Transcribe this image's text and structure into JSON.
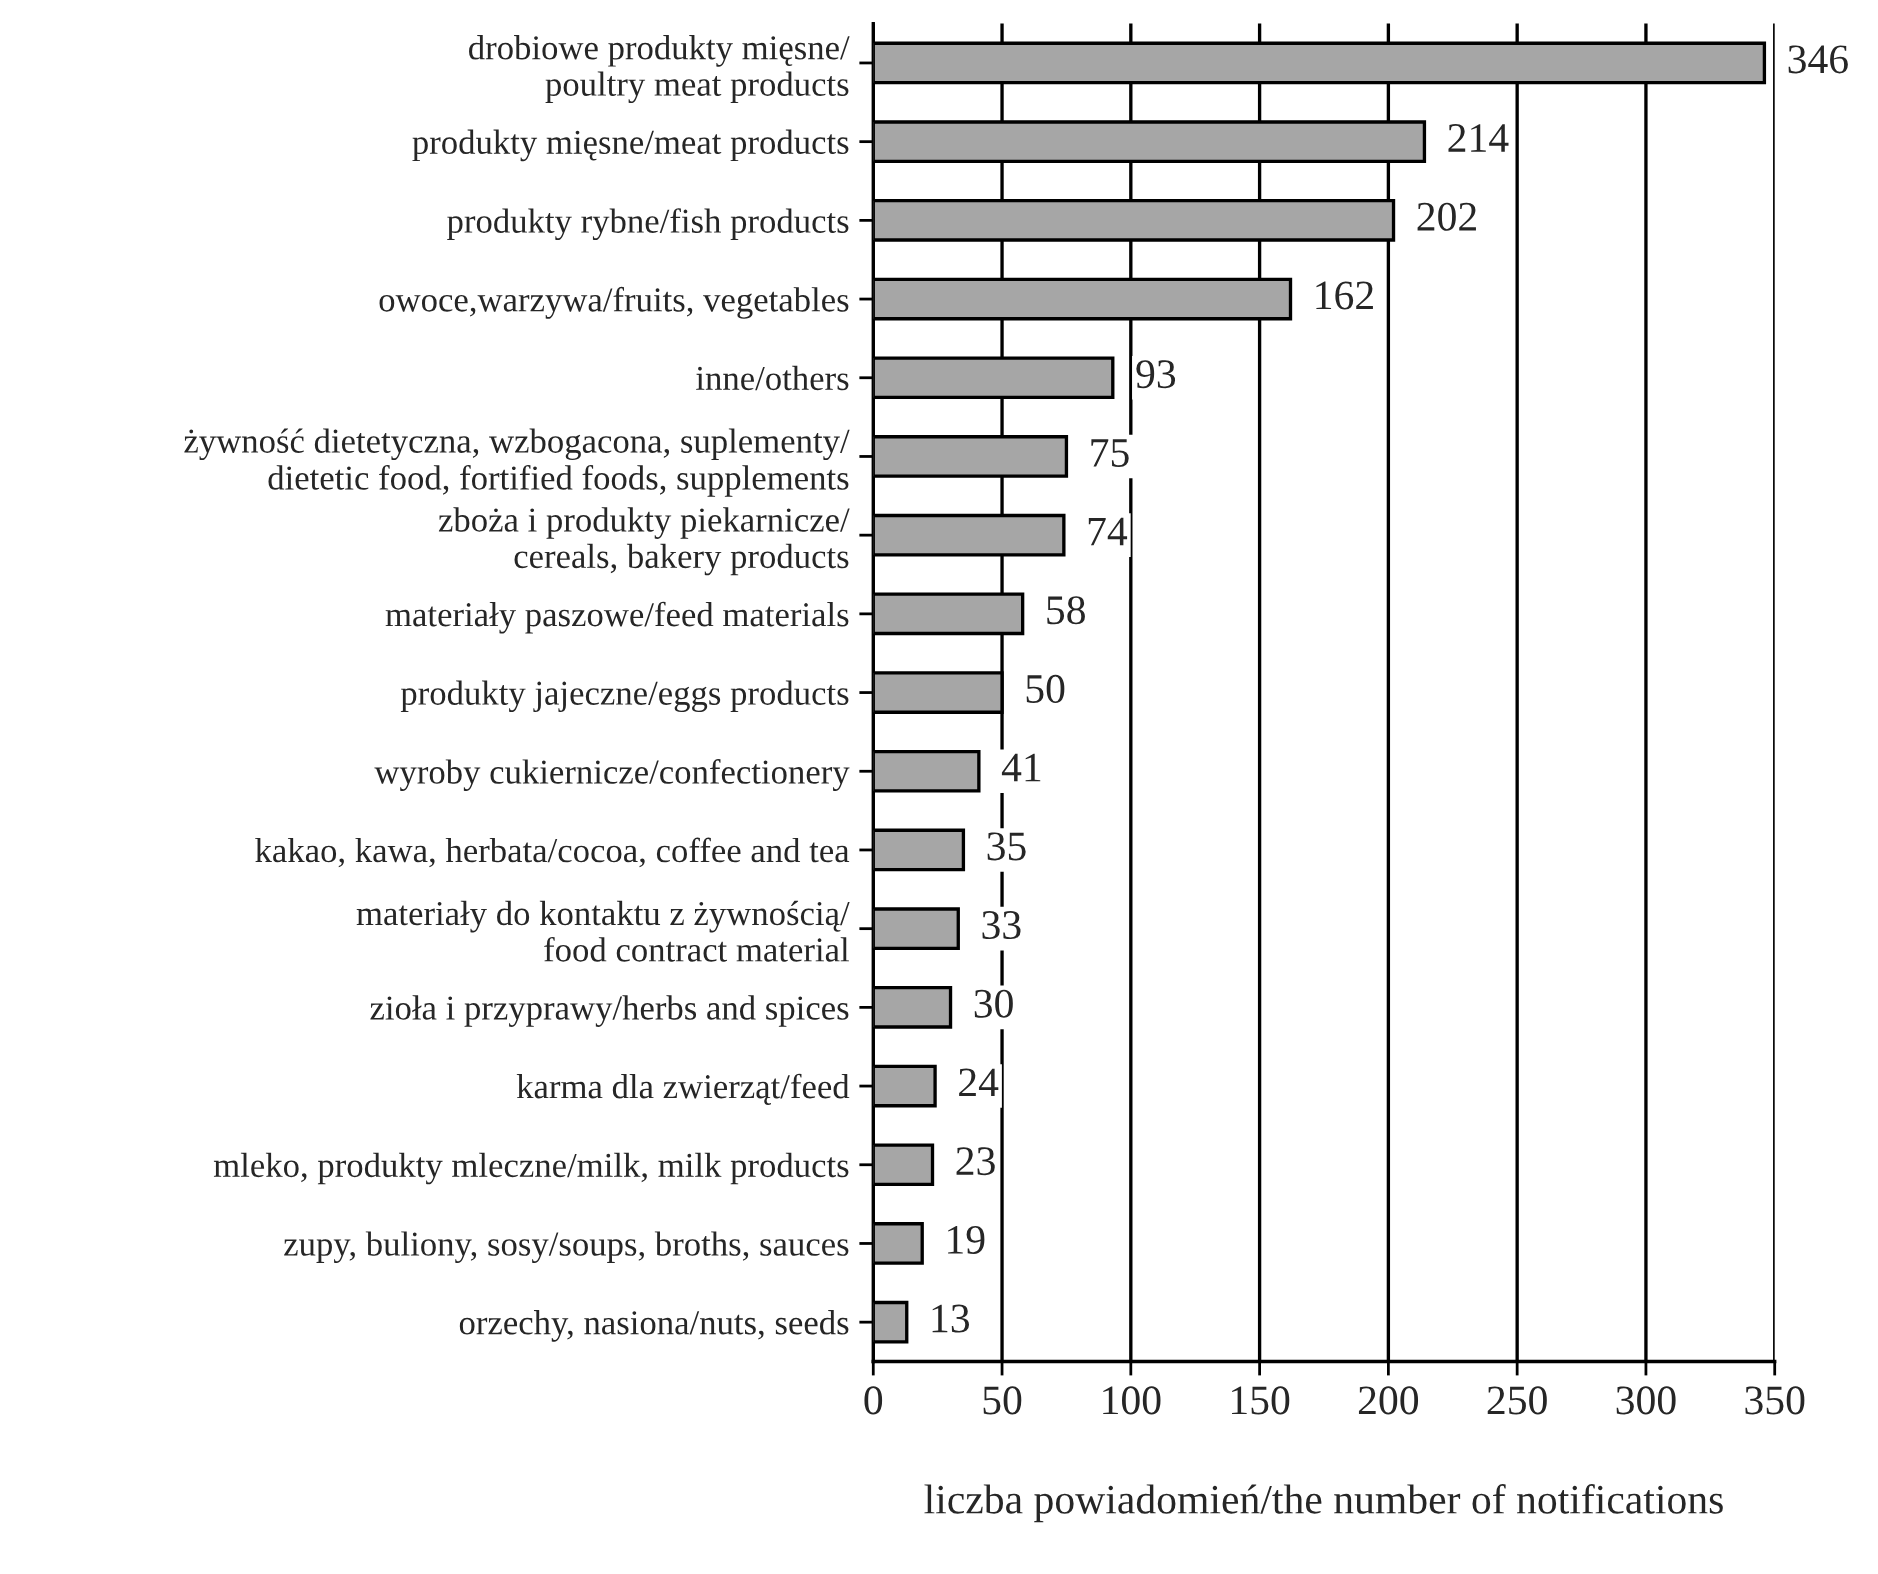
{
  "chart_data": {
    "type": "bar",
    "orientation": "horizontal",
    "xlabel": "liczba powiadomień/the number of notifications",
    "categories": [
      "drobiowe produkty mięsne/\npoultry meat products",
      "produkty mięsne/meat products",
      "produkty rybne/fish products",
      "owoce,warzywa/fruits, vegetables",
      "inne/others",
      "żywność dietetyczna, wzbogacona, suplementy/\ndietetic food, fortified foods, supplements",
      "zboża i produkty piekarnicze/\ncereals, bakery products",
      "materiały paszowe/feed materials",
      "produkty jajeczne/eggs products",
      "wyroby cukiernicze/confectionery",
      "kakao, kawa, herbata/cocoa, coffee and tea",
      "materiały do kontaktu z żywnością/\nfood contract material",
      "zioła i przyprawy/herbs and spices",
      "karma dla zwierząt/feed",
      "mleko, produkty mleczne/milk, milk products",
      "zupy, buliony, sosy/soups, broths, sauces",
      "orzechy, nasiona/nuts, seeds"
    ],
    "values": [
      346,
      214,
      202,
      162,
      93,
      75,
      74,
      58,
      50,
      41,
      35,
      33,
      30,
      24,
      23,
      19,
      13
    ],
    "color": "#a6a6a6",
    "xlim": [
      0,
      350
    ],
    "xticks": [
      0,
      50,
      100,
      150,
      200,
      250,
      300,
      350
    ],
    "grid": "x",
    "data_labels": true
  }
}
